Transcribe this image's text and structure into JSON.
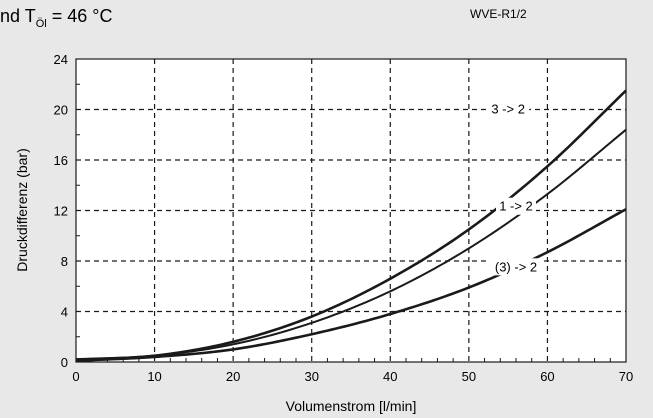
{
  "header": {
    "title_main": "nd T",
    "title_subscript": "Öl",
    "title_rest": " = 46 °C",
    "model": "WVE-R1/2"
  },
  "chart_data": {
    "type": "line",
    "xlabel": "Volumenstrom [l/min]",
    "ylabel": "Druckdifferenz (bar)",
    "xlim": [
      0,
      70
    ],
    "ylim": [
      0,
      24
    ],
    "xticks": [
      0,
      10,
      20,
      30,
      40,
      50,
      60,
      70
    ],
    "yticks": [
      0,
      4,
      8,
      12,
      16,
      20,
      24
    ],
    "grid": true,
    "grid_style": "dashed",
    "legend": "none",
    "series": [
      {
        "name": "3 -> 2",
        "x": [
          0,
          10,
          20,
          30,
          40,
          50,
          60,
          70
        ],
        "y": [
          0.2,
          0.5,
          1.6,
          3.6,
          6.6,
          10.5,
          15.5,
          21.5
        ]
      },
      {
        "name": "1 -> 2",
        "x": [
          0,
          10,
          20,
          30,
          40,
          50,
          60,
          70
        ],
        "y": [
          0.2,
          0.5,
          1.4,
          3.1,
          5.6,
          9.0,
          13.3,
          18.4
        ]
      },
      {
        "name": "(3) -> 2",
        "x": [
          0,
          10,
          20,
          30,
          40,
          50,
          60,
          70
        ],
        "y": [
          0.1,
          0.4,
          1.0,
          2.2,
          3.8,
          5.9,
          8.7,
          12.1
        ]
      }
    ]
  }
}
